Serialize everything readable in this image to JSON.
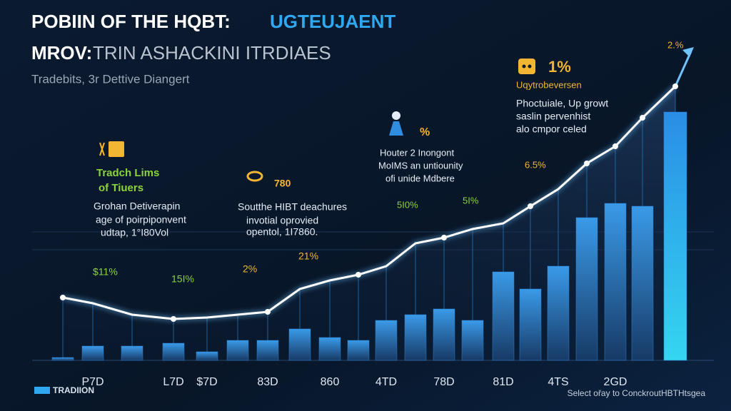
{
  "chart_data": {
    "type": "bar",
    "title": "POBIIN OF THE HQBT:",
    "title_highlight": "UGTEUJAENT",
    "subtitle_lead": "MROV:",
    "subtitle": "TRIN ASHACKINI ITRDIAES",
    "caption": "Tradebits, 3r Dettive Diangert",
    "categories": [
      null,
      "P7D",
      null,
      "L7D",
      "$7D",
      null,
      "83D",
      null,
      "860",
      null,
      "4TD",
      null,
      "78D",
      null,
      "81D",
      null,
      "4TS",
      null,
      "2GD",
      null,
      null
    ],
    "ylim": [
      0,
      100
    ],
    "series": [
      {
        "kind": "bar",
        "color": "#2a7fd4",
        "values": [
          1,
          5,
          5,
          6,
          3,
          7,
          7,
          11,
          8,
          7,
          14,
          16,
          18,
          14,
          31,
          25,
          33,
          50,
          55,
          54,
          87
        ]
      },
      {
        "kind": "line",
        "color": "#ffffff",
        "values": [
          22,
          20,
          16,
          14.5,
          15,
          16,
          17,
          25,
          28,
          30,
          33,
          41,
          43,
          46,
          48,
          54,
          60,
          69,
          75,
          85,
          96
        ]
      }
    ],
    "annotations": [
      {
        "text": "Tradch Lims",
        "color": "#8bd33c"
      },
      {
        "text": "of Tiuers",
        "color": "#8bd33c"
      },
      {
        "text": "Grohan Detiverapin",
        "color": "#e6ecf5"
      },
      {
        "text": "age of poirpiponvent",
        "color": "#e6ecf5"
      },
      {
        "text": "udtap, 1°I80Vol",
        "color": "#e6ecf5"
      },
      {
        "text": "780",
        "color": "#f2b632"
      },
      {
        "text": "Soutthe HIBT deachures",
        "color": "#e6ecf5"
      },
      {
        "text": "invotial oprovied",
        "color": "#e6ecf5"
      },
      {
        "text": "opentol, 1I7860.",
        "color": "#e6ecf5"
      },
      {
        "text": "%",
        "color": "#f2b632"
      },
      {
        "text": "Houter 2 Inongont",
        "color": "#e6ecf5"
      },
      {
        "text": "MoIMS an untiounity",
        "color": "#e6ecf5"
      },
      {
        "text": "ofi unide Mdbere",
        "color": "#e6ecf5"
      },
      {
        "text": "1%",
        "color": "#f2b632"
      },
      {
        "text": "Uqytrobeversen",
        "color": "#f2b632"
      },
      {
        "text": "Phoctuiale, Up growt",
        "color": "#e6ecf5"
      },
      {
        "text": "saslin pervenhist",
        "color": "#e6ecf5"
      },
      {
        "text": "alo cmpor celed",
        "color": "#e6ecf5"
      },
      {
        "text": "$11%",
        "color": "#8bd33c"
      },
      {
        "text": "15I%",
        "color": "#8bd33c"
      },
      {
        "text": "2%",
        "color": "#f2b632"
      },
      {
        "text": "21%",
        "color": "#f2b632"
      },
      {
        "text": "5I0%",
        "color": "#8bd33c"
      },
      {
        "text": "5I%",
        "color": "#8bd33c"
      },
      {
        "text": "6.5%",
        "color": "#f2b632"
      },
      {
        "text": "2.%",
        "color": "#f2b632"
      }
    ],
    "logo": "TRADIION",
    "footer": "Select ořay to ConckroutHBTHtsgea"
  }
}
